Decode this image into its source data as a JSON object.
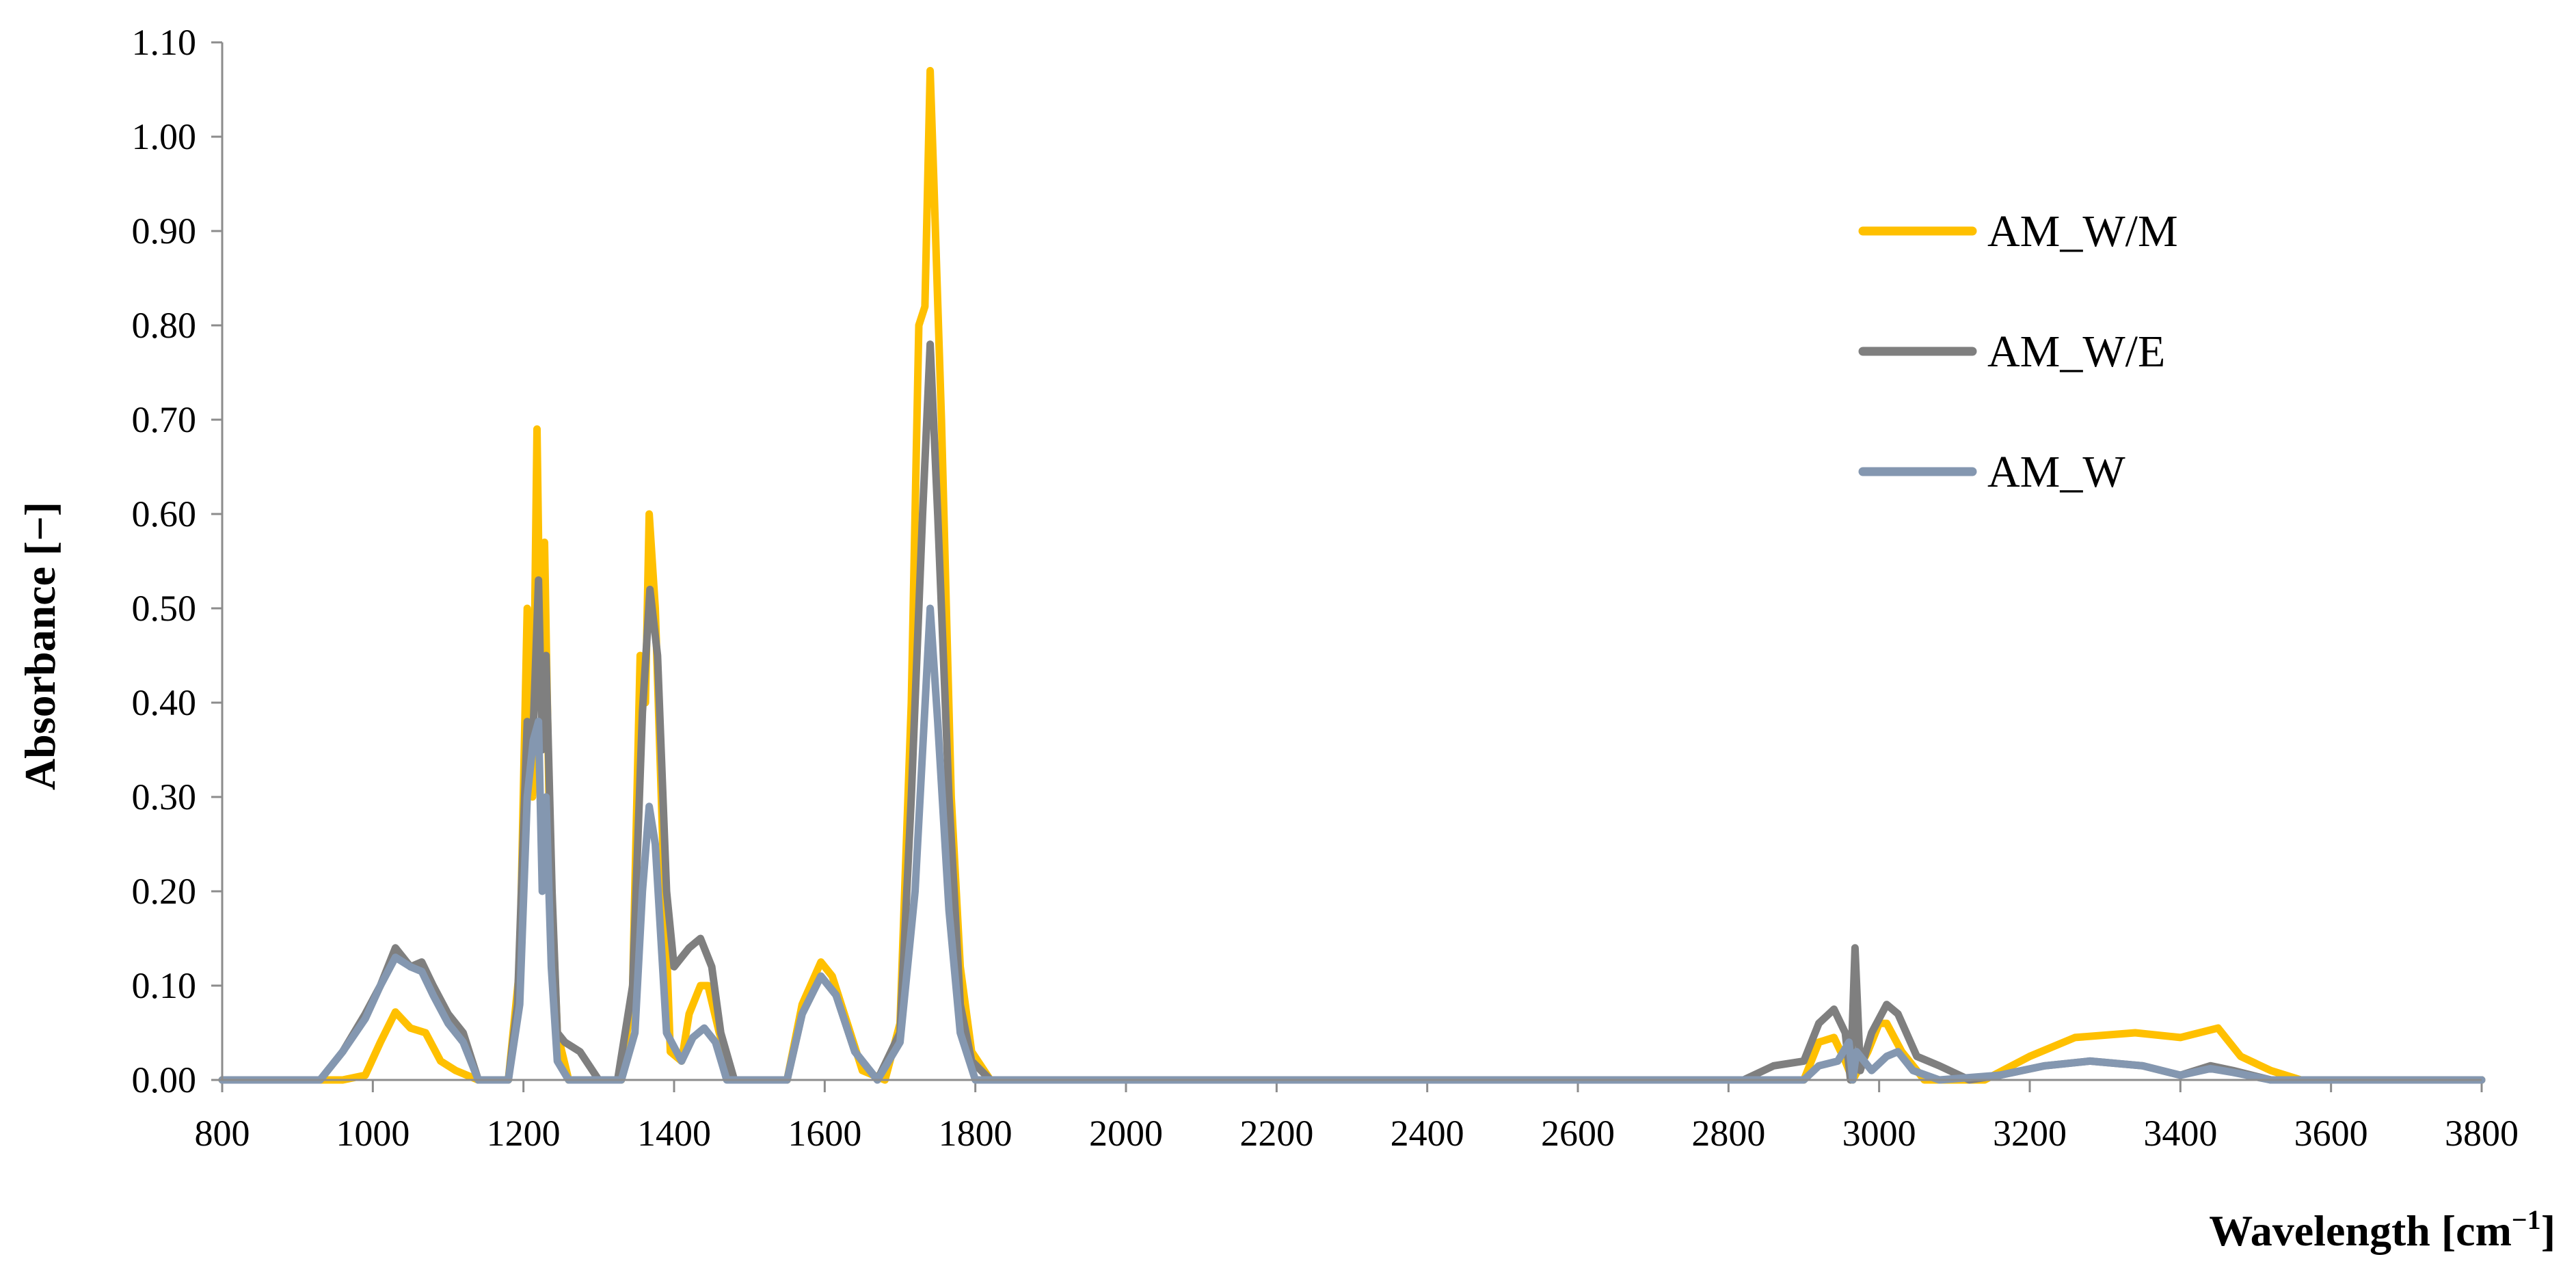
{
  "chart_data": {
    "type": "line",
    "xlabel": "Wavelength [cm",
    "xlabel_sup": "−1",
    "xlabel_close": "]",
    "ylabel": "Absorbance [−]",
    "xlim": [
      800,
      3800
    ],
    "ylim": [
      0,
      1.1
    ],
    "x_ticks": [
      "800",
      "1000",
      "1200",
      "1400",
      "1600",
      "1800",
      "2000",
      "2200",
      "2400",
      "2600",
      "2800",
      "3000",
      "3200",
      "3400",
      "3600",
      "3800"
    ],
    "y_ticks": [
      "0.00",
      "0.10",
      "0.20",
      "0.30",
      "0.40",
      "0.50",
      "0.60",
      "0.70",
      "0.80",
      "0.90",
      "1.00",
      "1.10"
    ],
    "legend_position": "right",
    "series": [
      {
        "name": "AM_W/M",
        "color": "#FFC000",
        "points": [
          [
            800,
            0.0
          ],
          [
            960,
            0.0
          ],
          [
            990,
            0.005
          ],
          [
            1010,
            0.04
          ],
          [
            1030,
            0.072
          ],
          [
            1050,
            0.055
          ],
          [
            1070,
            0.05
          ],
          [
            1090,
            0.02
          ],
          [
            1110,
            0.01
          ],
          [
            1140,
            0.0
          ],
          [
            1180,
            0.0
          ],
          [
            1195,
            0.12
          ],
          [
            1205,
            0.5
          ],
          [
            1212,
            0.3
          ],
          [
            1218,
            0.69
          ],
          [
            1223,
            0.4
          ],
          [
            1228,
            0.57
          ],
          [
            1235,
            0.25
          ],
          [
            1245,
            0.05
          ],
          [
            1260,
            0.0
          ],
          [
            1330,
            0.0
          ],
          [
            1345,
            0.1
          ],
          [
            1355,
            0.45
          ],
          [
            1362,
            0.4
          ],
          [
            1367,
            0.6
          ],
          [
            1375,
            0.5
          ],
          [
            1385,
            0.25
          ],
          [
            1395,
            0.03
          ],
          [
            1410,
            0.02
          ],
          [
            1420,
            0.07
          ],
          [
            1435,
            0.1
          ],
          [
            1445,
            0.1
          ],
          [
            1460,
            0.05
          ],
          [
            1480,
            0.0
          ],
          [
            1550,
            0.0
          ],
          [
            1570,
            0.08
          ],
          [
            1595,
            0.125
          ],
          [
            1610,
            0.11
          ],
          [
            1630,
            0.06
          ],
          [
            1650,
            0.01
          ],
          [
            1680,
            0.0
          ],
          [
            1700,
            0.06
          ],
          [
            1715,
            0.4
          ],
          [
            1725,
            0.8
          ],
          [
            1733,
            0.82
          ],
          [
            1740,
            1.07
          ],
          [
            1745,
            0.95
          ],
          [
            1755,
            0.7
          ],
          [
            1768,
            0.3
          ],
          [
            1780,
            0.12
          ],
          [
            1795,
            0.03
          ],
          [
            1820,
            0.0
          ],
          [
            2900,
            0.0
          ],
          [
            2920,
            0.04
          ],
          [
            2940,
            0.045
          ],
          [
            2955,
            0.02
          ],
          [
            2965,
            0.0
          ],
          [
            2985,
            0.03
          ],
          [
            3000,
            0.06
          ],
          [
            3010,
            0.06
          ],
          [
            3030,
            0.03
          ],
          [
            3060,
            0.0
          ],
          [
            3140,
            0.0
          ],
          [
            3200,
            0.025
          ],
          [
            3260,
            0.045
          ],
          [
            3340,
            0.05
          ],
          [
            3400,
            0.045
          ],
          [
            3450,
            0.055
          ],
          [
            3480,
            0.025
          ],
          [
            3520,
            0.01
          ],
          [
            3560,
            0.0
          ],
          [
            3800,
            0.0
          ]
        ]
      },
      {
        "name": "AM_W/E",
        "color": "#7F7F7F",
        "points": [
          [
            800,
            0.0
          ],
          [
            930,
            0.0
          ],
          [
            960,
            0.03
          ],
          [
            990,
            0.07
          ],
          [
            1010,
            0.1
          ],
          [
            1030,
            0.14
          ],
          [
            1050,
            0.12
          ],
          [
            1065,
            0.125
          ],
          [
            1080,
            0.1
          ],
          [
            1100,
            0.07
          ],
          [
            1120,
            0.05
          ],
          [
            1140,
            0.0
          ],
          [
            1180,
            0.0
          ],
          [
            1192,
            0.08
          ],
          [
            1205,
            0.38
          ],
          [
            1212,
            0.35
          ],
          [
            1220,
            0.53
          ],
          [
            1225,
            0.35
          ],
          [
            1230,
            0.45
          ],
          [
            1238,
            0.2
          ],
          [
            1245,
            0.05
          ],
          [
            1255,
            0.04
          ],
          [
            1275,
            0.03
          ],
          [
            1300,
            0.0
          ],
          [
            1325,
            0.0
          ],
          [
            1345,
            0.1
          ],
          [
            1358,
            0.39
          ],
          [
            1368,
            0.52
          ],
          [
            1378,
            0.45
          ],
          [
            1390,
            0.2
          ],
          [
            1400,
            0.12
          ],
          [
            1420,
            0.14
          ],
          [
            1435,
            0.15
          ],
          [
            1450,
            0.12
          ],
          [
            1462,
            0.05
          ],
          [
            1480,
            0.0
          ],
          [
            1550,
            0.0
          ],
          [
            1570,
            0.07
          ],
          [
            1595,
            0.11
          ],
          [
            1615,
            0.09
          ],
          [
            1640,
            0.03
          ],
          [
            1670,
            0.0
          ],
          [
            1700,
            0.05
          ],
          [
            1715,
            0.3
          ],
          [
            1730,
            0.6
          ],
          [
            1740,
            0.78
          ],
          [
            1750,
            0.6
          ],
          [
            1765,
            0.3
          ],
          [
            1780,
            0.08
          ],
          [
            1795,
            0.02
          ],
          [
            1820,
            0.0
          ],
          [
            2820,
            0.0
          ],
          [
            2860,
            0.015
          ],
          [
            2900,
            0.02
          ],
          [
            2920,
            0.06
          ],
          [
            2940,
            0.075
          ],
          [
            2955,
            0.05
          ],
          [
            2962,
            0.0
          ],
          [
            2968,
            0.14
          ],
          [
            2975,
            0.01
          ],
          [
            2990,
            0.05
          ],
          [
            3010,
            0.08
          ],
          [
            3025,
            0.07
          ],
          [
            3050,
            0.025
          ],
          [
            3080,
            0.015
          ],
          [
            3120,
            0.0
          ],
          [
            3160,
            0.005
          ],
          [
            3220,
            0.015
          ],
          [
            3280,
            0.02
          ],
          [
            3350,
            0.015
          ],
          [
            3400,
            0.005
          ],
          [
            3440,
            0.015
          ],
          [
            3470,
            0.01
          ],
          [
            3520,
            0.0
          ],
          [
            3800,
            0.0
          ]
        ]
      },
      {
        "name": "AM_W",
        "color": "#8497B0",
        "points": [
          [
            800,
            0.0
          ],
          [
            930,
            0.0
          ],
          [
            960,
            0.03
          ],
          [
            990,
            0.065
          ],
          [
            1010,
            0.1
          ],
          [
            1030,
            0.13
          ],
          [
            1050,
            0.12
          ],
          [
            1065,
            0.115
          ],
          [
            1080,
            0.09
          ],
          [
            1100,
            0.06
          ],
          [
            1120,
            0.04
          ],
          [
            1140,
            0.0
          ],
          [
            1180,
            0.0
          ],
          [
            1195,
            0.08
          ],
          [
            1205,
            0.3
          ],
          [
            1213,
            0.36
          ],
          [
            1220,
            0.38
          ],
          [
            1225,
            0.2
          ],
          [
            1230,
            0.3
          ],
          [
            1237,
            0.12
          ],
          [
            1245,
            0.02
          ],
          [
            1260,
            0.0
          ],
          [
            1330,
            0.0
          ],
          [
            1348,
            0.05
          ],
          [
            1358,
            0.2
          ],
          [
            1367,
            0.29
          ],
          [
            1375,
            0.25
          ],
          [
            1390,
            0.05
          ],
          [
            1410,
            0.02
          ],
          [
            1425,
            0.045
          ],
          [
            1440,
            0.055
          ],
          [
            1455,
            0.04
          ],
          [
            1470,
            0.0
          ],
          [
            1550,
            0.0
          ],
          [
            1570,
            0.07
          ],
          [
            1595,
            0.11
          ],
          [
            1615,
            0.09
          ],
          [
            1640,
            0.03
          ],
          [
            1670,
            0.0
          ],
          [
            1700,
            0.04
          ],
          [
            1720,
            0.2
          ],
          [
            1732,
            0.38
          ],
          [
            1740,
            0.5
          ],
          [
            1750,
            0.38
          ],
          [
            1765,
            0.18
          ],
          [
            1780,
            0.05
          ],
          [
            1800,
            0.0
          ],
          [
            2900,
            0.0
          ],
          [
            2920,
            0.015
          ],
          [
            2945,
            0.02
          ],
          [
            2960,
            0.04
          ],
          [
            2965,
            0.0
          ],
          [
            2970,
            0.03
          ],
          [
            2990,
            0.01
          ],
          [
            3010,
            0.025
          ],
          [
            3025,
            0.03
          ],
          [
            3045,
            0.01
          ],
          [
            3080,
            0.0
          ],
          [
            3160,
            0.005
          ],
          [
            3220,
            0.015
          ],
          [
            3280,
            0.02
          ],
          [
            3350,
            0.015
          ],
          [
            3400,
            0.005
          ],
          [
            3440,
            0.012
          ],
          [
            3470,
            0.008
          ],
          [
            3520,
            0.0
          ],
          [
            3800,
            0.0
          ]
        ]
      }
    ]
  }
}
